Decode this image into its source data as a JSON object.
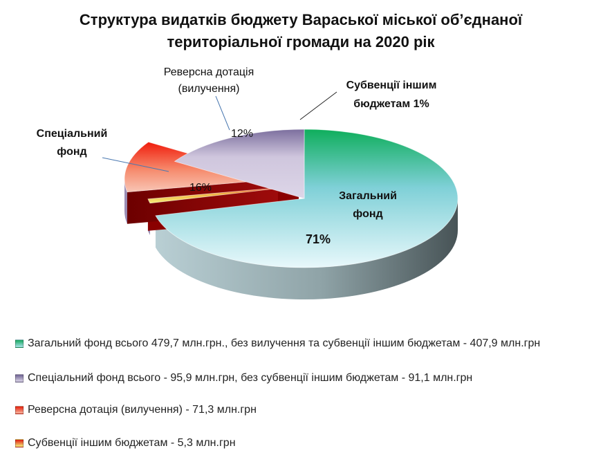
{
  "chart_data": {
    "type": "pie",
    "title_line1": "Структура видатків бюджету Вараської міської об’єднаної",
    "title_line2": "територіальної громади на 2020 рік",
    "slices": [
      {
        "label": "Загальний фонд",
        "label_line1": "Загальний",
        "label_line2": "фонд",
        "value": 71,
        "value_label": "71%",
        "color": "#2db87a",
        "color_light": "#c8ecf1"
      },
      {
        "label": "Субвенції іншим бюджетам 1%",
        "label_line1": "Субвенції іншим",
        "label_line2": "бюджетам 1%",
        "value": 1,
        "value_label": "1%",
        "color": "#e2251b",
        "color_light": "#f3e63a"
      },
      {
        "label": "Реверсна дотація (вилучення)",
        "label_line1": "Реверсна дотація",
        "label_line2": "(вилучення)",
        "value": 12,
        "value_label": "12%",
        "color": "#f2331c",
        "color_light": "#f6c1b0"
      },
      {
        "label": "Спеціальний фонд",
        "label_line1": "Спеціальний",
        "label_line2": "фонд",
        "value": 16,
        "value_label": "16%",
        "color": "#8e7fb0",
        "color_light": "#d6cfe2"
      }
    ],
    "legend": [
      {
        "text": "Загальний фонд всього 479,7 млн.грн., без вилучення та субвенції іншим бюджетам - 407,9 млн.грн",
        "color": "#37c08a"
      },
      {
        "text": "Спеціальний фонд всього - 95,9 млн.грн, без субвенції іншим бюджетам - 91,1 млн.грн",
        "color": "#9b8fbb"
      },
      {
        "text": "Реверсна дотація (вилучення) - 71,3 млн.грн",
        "color": "#f04a2a"
      },
      {
        "text": "Субвенції іншим бюджетам - 5,3 млн.грн",
        "color": "#e63a1a"
      }
    ]
  }
}
